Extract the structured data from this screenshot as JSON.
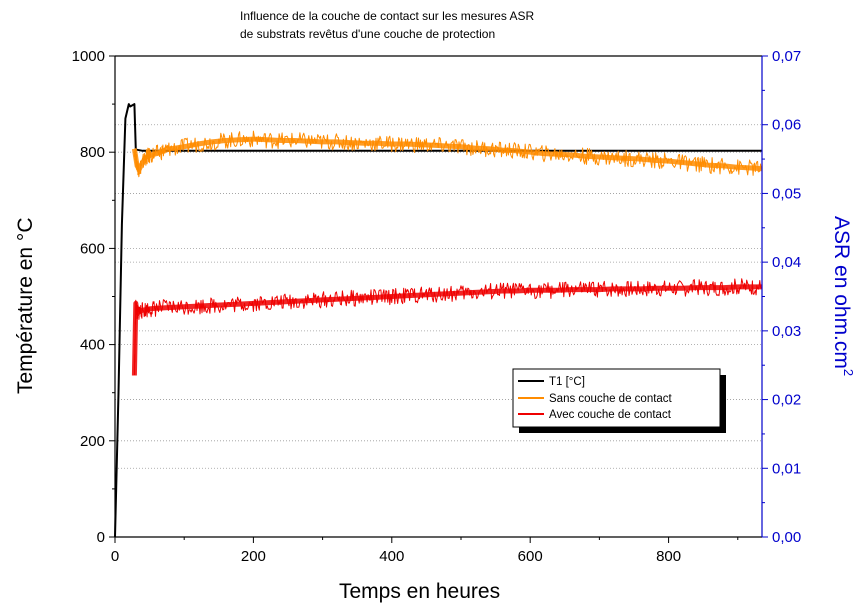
{
  "chart_data": {
    "type": "line",
    "title_lines": [
      "Influence de la couche de contact sur les mesures ASR",
      "de substrats revêtus d'une couche de protection"
    ],
    "xlabel": "Temps en heures",
    "ylabel_left": "Température en °C",
    "ylabel_right": "ASR en ohm.cm",
    "ylabel_right_superscript": "2",
    "xlim": [
      0,
      935
    ],
    "ylim_left": [
      0,
      1000
    ],
    "ylim_right": [
      0,
      0.07
    ],
    "x_ticks": [
      "0",
      "200",
      "400",
      "600",
      "800"
    ],
    "x_tick_values": [
      0,
      200,
      400,
      600,
      800
    ],
    "y_left_ticks": [
      "0",
      "200",
      "400",
      "600",
      "800",
      "1000"
    ],
    "y_left_tick_values": [
      0,
      200,
      400,
      600,
      800,
      1000
    ],
    "y_right_ticks": [
      "0,00",
      "0,01",
      "0,02",
      "0,03",
      "0,04",
      "0,05",
      "0,06",
      "0,07"
    ],
    "y_right_tick_values": [
      0,
      0.01,
      0.02,
      0.03,
      0.04,
      0.05,
      0.06,
      0.07
    ],
    "right_axis_color": "#0000cc",
    "grid": "dotted horizontal",
    "legend_position": "center-right",
    "series": [
      {
        "name": "T1 [°C]",
        "axis": "left",
        "color": "#000000",
        "x": [
          0,
          5,
          10,
          15,
          20,
          22,
          28,
          30,
          32,
          40,
          100,
          935
        ],
        "y": [
          0,
          300,
          650,
          870,
          900,
          895,
          900,
          805,
          805,
          803,
          803,
          803
        ]
      },
      {
        "name": "Sans couche de contact",
        "axis": "right",
        "color": "#ff8c00",
        "x": [
          28,
          32,
          35,
          40,
          45,
          50,
          60,
          70,
          80,
          100,
          120,
          140,
          160,
          180,
          200,
          220,
          240,
          260,
          280,
          300,
          320,
          340,
          360,
          380,
          400,
          420,
          440,
          460,
          480,
          500,
          520,
          540,
          560,
          580,
          600,
          620,
          640,
          660,
          680,
          700,
          720,
          740,
          760,
          780,
          800,
          820,
          840,
          860,
          880,
          900,
          920,
          935
        ],
        "y": [
          0.0565,
          0.054,
          0.0535,
          0.0545,
          0.0553,
          0.0555,
          0.0558,
          0.0562,
          0.0565,
          0.0568,
          0.0572,
          0.0575,
          0.0577,
          0.0578,
          0.0579,
          0.0578,
          0.0577,
          0.0577,
          0.0576,
          0.0575,
          0.0575,
          0.0574,
          0.0573,
          0.0573,
          0.0572,
          0.0572,
          0.0571,
          0.057,
          0.0569,
          0.0568,
          0.0566,
          0.0565,
          0.0563,
          0.0562,
          0.056,
          0.0558,
          0.0557,
          0.0556,
          0.0554,
          0.0553,
          0.0552,
          0.0551,
          0.055,
          0.0548,
          0.0547,
          0.0545,
          0.0543,
          0.0541,
          0.054,
          0.0538,
          0.0537,
          0.0536
        ]
      },
      {
        "name": "Avec couche de contact",
        "axis": "right",
        "color": "#ee0000",
        "x": [
          28,
          30,
          32,
          35,
          40,
          50,
          60,
          80,
          100,
          120,
          140,
          160,
          180,
          200,
          220,
          240,
          260,
          280,
          300,
          320,
          340,
          360,
          380,
          400,
          420,
          440,
          460,
          480,
          500,
          520,
          540,
          560,
          580,
          600,
          620,
          640,
          660,
          680,
          700,
          720,
          740,
          760,
          780,
          800,
          820,
          840,
          860,
          880,
          900,
          920,
          935
        ],
        "y": [
          0.0235,
          0.034,
          0.0325,
          0.0328,
          0.033,
          0.0332,
          0.0333,
          0.0334,
          0.0335,
          0.0336,
          0.0337,
          0.0338,
          0.0339,
          0.034,
          0.0341,
          0.0342,
          0.0343,
          0.0344,
          0.0345,
          0.0346,
          0.0347,
          0.0348,
          0.0349,
          0.035,
          0.0351,
          0.0352,
          0.0353,
          0.0354,
          0.0355,
          0.0356,
          0.0357,
          0.0358,
          0.0358,
          0.0359,
          0.0359,
          0.0359,
          0.036,
          0.036,
          0.036,
          0.0361,
          0.0361,
          0.0361,
          0.0362,
          0.0362,
          0.0362,
          0.0363,
          0.0363,
          0.0363,
          0.0364,
          0.0364,
          0.0364
        ]
      }
    ]
  }
}
